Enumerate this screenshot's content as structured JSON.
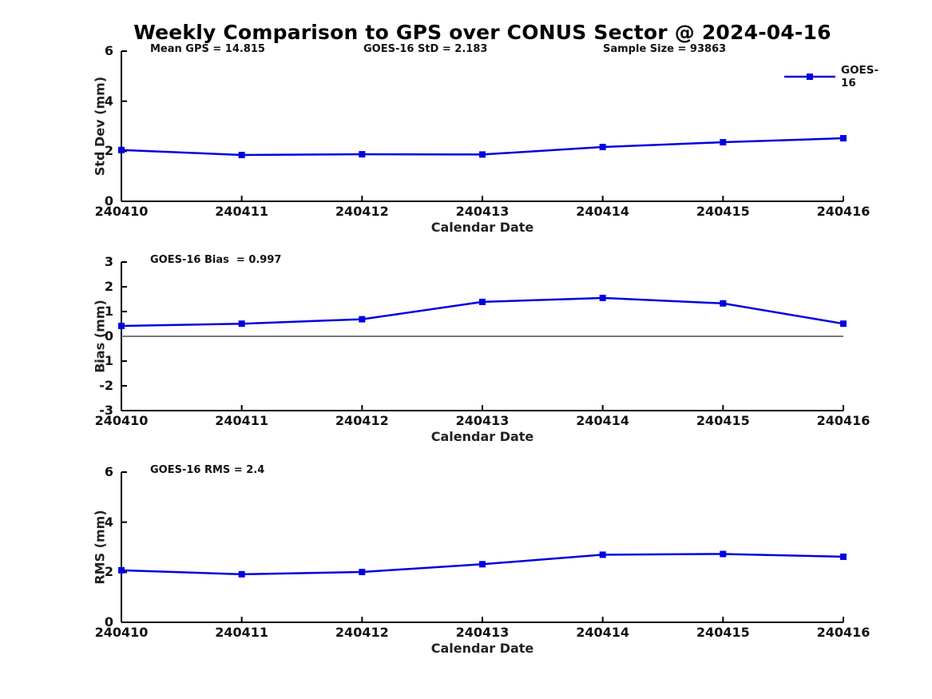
{
  "figure": {
    "title": "Weekly Comparison to GPS over CONUS Sector @ 2024-04-16"
  },
  "legend": {
    "label": "GOES-16"
  },
  "colors": {
    "series": "#0000e0",
    "axis": "#000000",
    "tick_text": "#111111",
    "zero_line": "#777777",
    "background": "#ffffff"
  },
  "chart_data": [
    {
      "type": "line",
      "id": "stddev",
      "title": "",
      "xlabel": "Calendar Date",
      "ylabel": "Std Dev (mm)",
      "categories": [
        "240410",
        "240411",
        "240412",
        "240413",
        "240414",
        "240415",
        "240416"
      ],
      "series": [
        {
          "name": "GOES-16",
          "values": [
            2.05,
            1.85,
            1.88,
            1.87,
            2.17,
            2.36,
            2.52
          ]
        }
      ],
      "ylim": [
        0,
        6
      ],
      "yticks": [
        0,
        2,
        4,
        6
      ],
      "grid": false,
      "marker": "square",
      "show_legend": true,
      "legend_position": "upper right",
      "annotations": [
        "Mean GPS = 14.815",
        "GOES-16 StD = 2.183",
        "Sample Size = 93863"
      ]
    },
    {
      "type": "line",
      "id": "bias",
      "title": "",
      "xlabel": "Calendar Date",
      "ylabel": "Bias (mm)",
      "categories": [
        "240410",
        "240411",
        "240412",
        "240413",
        "240414",
        "240415",
        "240416"
      ],
      "series": [
        {
          "name": "GOES-16",
          "values": [
            0.42,
            0.51,
            0.69,
            1.39,
            1.55,
            1.33,
            0.51
          ]
        }
      ],
      "ylim": [
        -3,
        3
      ],
      "yticks": [
        -3,
        -2,
        -1,
        0,
        1,
        2,
        3
      ],
      "grid": false,
      "marker": "square",
      "zero_line": true,
      "show_legend": false,
      "annotations": [
        "GOES-16 Bias  = 0.997"
      ]
    },
    {
      "type": "line",
      "id": "rms",
      "title": "",
      "xlabel": "Calendar Date",
      "ylabel": "RMS (mm)",
      "categories": [
        "240410",
        "240411",
        "240412",
        "240413",
        "240414",
        "240415",
        "240416"
      ],
      "series": [
        {
          "name": "GOES-16",
          "values": [
            2.08,
            1.92,
            2.01,
            2.32,
            2.7,
            2.73,
            2.62
          ]
        }
      ],
      "ylim": [
        0,
        6
      ],
      "yticks": [
        0,
        2,
        4,
        6
      ],
      "grid": false,
      "marker": "square",
      "zero_line": false,
      "show_legend": false,
      "annotations": [
        "GOES-16 RMS = 2.4"
      ]
    }
  ]
}
